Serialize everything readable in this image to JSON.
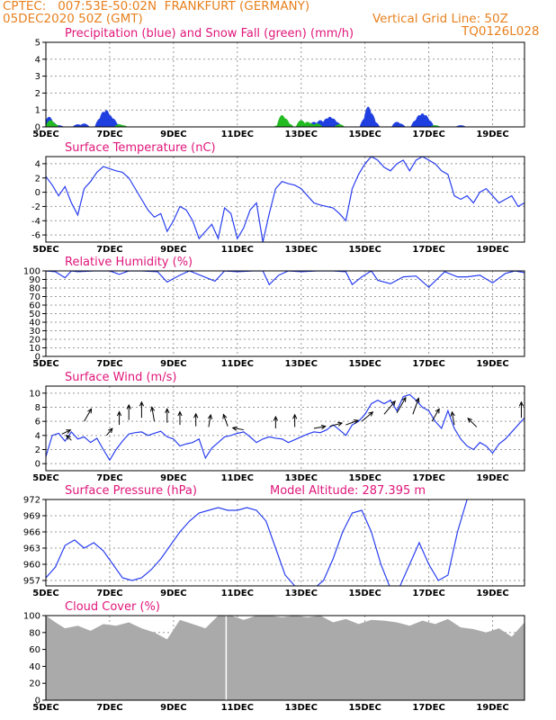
{
  "header": {
    "line1": "CPTEC:   007:53E-50:02N  FRANKFURT (GERMANY)",
    "line2_left": "05DEC2020 50Z (GMT)",
    "line2_right": "Vertical Grid Line: 50Z",
    "line3_right": "TQ0126L028"
  },
  "colors": {
    "header": "#e8801e",
    "title": "#e0167a",
    "line": "#2a3ff0",
    "precip": "#1f3fe0",
    "snow": "#22bb22",
    "cloud": "#aaaaaa",
    "grid": "#999999"
  },
  "chart_data": [
    {
      "type": "bar",
      "title": "Precipitation (blue) and Snow Fall (green) (mm/h)",
      "ylim": [
        0,
        5
      ],
      "yticks": [
        0,
        1,
        2,
        3,
        4,
        5
      ],
      "xticks": [
        "5DEC",
        "7DEC",
        "9DEC",
        "11DEC",
        "13DEC",
        "15DEC",
        "17DEC",
        "19DEC"
      ],
      "series": [
        {
          "name": "Precipitation",
          "points": [
            [
              0.1,
              0.6
            ],
            [
              0.2,
              0.3
            ],
            [
              0.4,
              0.1
            ],
            [
              1.0,
              0.15
            ],
            [
              1.2,
              0.2
            ],
            [
              1.7,
              0.5
            ],
            [
              1.8,
              0.9
            ],
            [
              1.9,
              1.0
            ],
            [
              2.0,
              0.7
            ],
            [
              2.1,
              0.5
            ],
            [
              2.2,
              0.2
            ],
            [
              8.4,
              0.3
            ],
            [
              8.6,
              0.4
            ],
            [
              8.8,
              0.5
            ],
            [
              8.9,
              0.6
            ],
            [
              9.0,
              0.5
            ],
            [
              9.1,
              0.3
            ],
            [
              10.0,
              0.5
            ],
            [
              10.1,
              1.2
            ],
            [
              10.2,
              0.8
            ],
            [
              10.3,
              0.3
            ],
            [
              11.0,
              0.3
            ],
            [
              11.1,
              0.2
            ],
            [
              11.6,
              0.4
            ],
            [
              11.7,
              0.7
            ],
            [
              11.8,
              0.8
            ],
            [
              11.9,
              0.7
            ],
            [
              12.0,
              0.4
            ],
            [
              13.0,
              0.1
            ]
          ]
        },
        {
          "name": "Snow Fall",
          "points": [
            [
              0.15,
              0.4
            ],
            [
              0.25,
              0.2
            ],
            [
              2.3,
              0.15
            ],
            [
              2.4,
              0.1
            ],
            [
              7.3,
              0.1
            ],
            [
              7.4,
              0.7
            ],
            [
              7.5,
              0.5
            ],
            [
              7.6,
              0.2
            ],
            [
              8.0,
              0.4
            ],
            [
              8.2,
              0.3
            ],
            [
              8.3,
              0.2
            ],
            [
              8.5,
              0.2
            ],
            [
              9.2,
              0.15
            ],
            [
              12.2,
              0.1
            ]
          ]
        }
      ]
    },
    {
      "type": "line",
      "title": "Surface Temperature (nC)",
      "ylim": [
        -7,
        5
      ],
      "yticks": [
        -6,
        -4,
        -2,
        0,
        2,
        4
      ],
      "xticks": [
        "5DEC",
        "7DEC",
        "9DEC",
        "11DEC",
        "13DEC",
        "15DEC",
        "17DEC",
        "19DEC"
      ],
      "x": [
        0,
        0.2,
        0.4,
        0.6,
        0.8,
        1.0,
        1.2,
        1.4,
        1.6,
        1.8,
        2.0,
        2.2,
        2.4,
        2.6,
        2.8,
        3.0,
        3.2,
        3.4,
        3.6,
        3.8,
        4.0,
        4.2,
        4.4,
        4.6,
        4.8,
        5.0,
        5.2,
        5.4,
        5.6,
        5.8,
        6.0,
        6.2,
        6.4,
        6.6,
        6.8,
        7.0,
        7.2,
        7.4,
        7.6,
        7.8,
        8.0,
        8.2,
        8.4,
        8.6,
        8.8,
        9.0,
        9.2,
        9.4,
        9.6,
        9.8,
        10.0,
        10.2,
        10.4,
        10.6,
        10.8,
        11.0,
        11.2,
        11.4,
        11.6,
        11.8,
        12.0,
        12.2,
        12.4,
        12.6,
        12.8,
        13.0,
        13.2,
        13.4,
        13.6,
        13.8,
        14.0,
        14.2,
        14.4,
        14.6,
        14.8,
        15.0
      ],
      "y": [
        2.2,
        1.0,
        -0.5,
        0.8,
        -1.5,
        -3.2,
        0.5,
        1.5,
        2.8,
        3.6,
        3.3,
        3.0,
        2.8,
        2.0,
        0.5,
        -1.0,
        -2.5,
        -3.5,
        -3.0,
        -5.5,
        -4.0,
        -2.0,
        -2.5,
        -4.0,
        -6.5,
        -5.5,
        -4.5,
        -6.5,
        -2.2,
        -3.0,
        -6.5,
        -5.0,
        -2.5,
        -1.5,
        -7.0,
        -3.0,
        0.5,
        1.5,
        1.2,
        1.0,
        0.5,
        -0.5,
        -1.5,
        -1.8,
        -2.0,
        -2.2,
        -3.0,
        -4.0,
        0.5,
        2.5,
        4.0,
        5.0,
        4.5,
        3.5,
        3.0,
        4.0,
        4.5,
        3.0,
        4.5,
        5.0,
        4.5,
        4.0,
        3.0,
        2.5,
        -0.5,
        -1.0,
        -0.5,
        -1.5,
        0.0,
        0.5,
        -0.5,
        -1.5,
        -1.0,
        -0.5,
        -2.0,
        -1.5
      ],
      "xlim": [
        0,
        15
      ]
    },
    {
      "type": "line",
      "title": "Relative Humidity (%)",
      "ylim": [
        0,
        100
      ],
      "yticks": [
        0,
        10,
        20,
        30,
        40,
        50,
        60,
        70,
        80,
        90,
        100
      ],
      "xticks": [
        "5DEC",
        "7DEC",
        "9DEC",
        "11DEC",
        "13DEC",
        "15DEC",
        "17DEC",
        "19DEC"
      ],
      "x": [
        0,
        0.3,
        0.6,
        0.8,
        1.0,
        1.5,
        2.0,
        2.3,
        2.6,
        3.0,
        3.5,
        3.8,
        4.2,
        4.5,
        4.9,
        5.3,
        5.6,
        6.0,
        6.5,
        6.8,
        7.0,
        7.3,
        7.6,
        8.0,
        8.5,
        9.0,
        9.4,
        9.6,
        9.9,
        10.2,
        10.4,
        10.8,
        11.2,
        11.6,
        12.0,
        12.5,
        12.9,
        13.2,
        13.6,
        14.0,
        14.4,
        14.7,
        15.0
      ],
      "y": [
        100,
        99,
        92,
        100,
        99,
        100,
        100,
        96,
        100,
        100,
        99,
        87,
        95,
        100,
        94,
        88,
        100,
        99,
        100,
        100,
        84,
        95,
        100,
        99,
        100,
        100,
        99,
        84,
        93,
        100,
        89,
        85,
        93,
        94,
        81,
        99,
        93,
        93,
        95,
        86,
        97,
        100,
        98
      ],
      "xlim": [
        0,
        15
      ]
    },
    {
      "type": "line",
      "title": "Surface Wind (m/s)",
      "ylim": [
        -1,
        11
      ],
      "yticks": [
        0,
        2,
        4,
        6,
        8,
        10
      ],
      "xticks": [
        "5DEC",
        "7DEC",
        "9DEC",
        "11DEC",
        "13DEC",
        "15DEC",
        "17DEC",
        "19DEC"
      ],
      "x": [
        0,
        0.2,
        0.4,
        0.6,
        0.8,
        1.0,
        1.2,
        1.4,
        1.6,
        1.8,
        2.0,
        2.2,
        2.4,
        2.6,
        2.8,
        3.0,
        3.2,
        3.4,
        3.6,
        3.8,
        4.0,
        4.2,
        4.4,
        4.6,
        4.8,
        5.0,
        5.2,
        5.4,
        5.6,
        5.8,
        6.0,
        6.2,
        6.4,
        6.6,
        6.8,
        7.0,
        7.2,
        7.4,
        7.6,
        7.8,
        8.0,
        8.2,
        8.4,
        8.6,
        8.8,
        9.0,
        9.2,
        9.4,
        9.6,
        9.8,
        10.0,
        10.2,
        10.4,
        10.6,
        10.8,
        11.0,
        11.2,
        11.4,
        11.6,
        11.8,
        12.0,
        12.2,
        12.4,
        12.6,
        12.8,
        13.0,
        13.2,
        13.4,
        13.6,
        13.8,
        14.0,
        14.2,
        14.4,
        14.6,
        14.8,
        15.0
      ],
      "y": [
        1.0,
        4.0,
        4.3,
        3.2,
        4.5,
        3.5,
        3.8,
        3.0,
        3.6,
        2.0,
        0.5,
        2.0,
        3.2,
        4.2,
        4.4,
        4.5,
        4.0,
        4.3,
        4.6,
        3.8,
        3.5,
        2.5,
        2.8,
        3.0,
        3.5,
        0.8,
        2.2,
        3.0,
        3.8,
        4.0,
        4.3,
        4.5,
        3.8,
        3.0,
        3.5,
        3.8,
        3.6,
        3.5,
        3.0,
        3.4,
        3.8,
        4.2,
        4.5,
        4.4,
        4.8,
        5.5,
        4.8,
        4.0,
        5.5,
        6.0,
        7.0,
        8.5,
        9.0,
        8.5,
        9.0,
        7.5,
        9.5,
        9.8,
        9.0,
        8.0,
        7.5,
        6.0,
        5.0,
        7.5,
        5.0,
        3.5,
        2.5,
        2.0,
        3.0,
        2.5,
        1.5,
        2.8,
        3.5,
        4.5,
        5.5,
        6.5
      ],
      "xlim": [
        0,
        15
      ]
    },
    {
      "type": "line",
      "title": "Surface Pressure (hPa)",
      "annotation": "Model Altitude: 287.395 m",
      "ylim": [
        956,
        972
      ],
      "yticks": [
        957,
        960,
        963,
        966,
        969,
        972
      ],
      "xticks": [
        "5DEC",
        "7DEC",
        "9DEC",
        "11DEC",
        "13DEC",
        "15DEC",
        "17DEC",
        "19DEC"
      ],
      "x": [
        0,
        0.3,
        0.6,
        0.9,
        1.2,
        1.5,
        1.8,
        2.1,
        2.4,
        2.7,
        3.0,
        3.3,
        3.6,
        3.9,
        4.2,
        4.5,
        4.8,
        5.1,
        5.4,
        5.7,
        6.0,
        6.3,
        6.6,
        6.9,
        7.2,
        7.5,
        7.8,
        8.1,
        8.4,
        8.7,
        9.0,
        9.3,
        9.6,
        9.9,
        10.2,
        10.5,
        10.8,
        11.1,
        11.4,
        11.7,
        12.0,
        12.3,
        12.6,
        12.9,
        13.2
      ],
      "y": [
        957.5,
        959.5,
        963.5,
        964.5,
        963.0,
        964.0,
        962.5,
        960.0,
        957.5,
        957.0,
        957.5,
        959.0,
        961.0,
        963.5,
        966.0,
        968.0,
        969.5,
        970.0,
        970.5,
        970.0,
        970.0,
        970.5,
        970.0,
        968.0,
        963.0,
        958.0,
        956.0,
        955.5,
        955.5,
        957.0,
        961.0,
        966.0,
        969.5,
        970.0,
        966.0,
        960.0,
        955.5,
        956.0,
        960.0,
        964.0,
        960.0,
        957.0,
        958.0,
        966.0,
        972.0
      ],
      "xlim": [
        0,
        15
      ]
    },
    {
      "type": "area",
      "title": "Cloud Cover (%)",
      "ylim": [
        0,
        100
      ],
      "yticks": [
        0,
        20,
        40,
        60,
        80,
        100
      ],
      "xticks": [
        "5DEC",
        "7DEC",
        "9DEC",
        "11DEC",
        "13DEC",
        "15DEC",
        "17DEC",
        "19DEC"
      ],
      "x": [
        0,
        0.3,
        0.6,
        1.0,
        1.4,
        1.8,
        2.2,
        2.6,
        3.0,
        3.4,
        3.8,
        4.2,
        4.6,
        5.0,
        5.4,
        5.8,
        6.2,
        6.6,
        7.0,
        7.4,
        7.8,
        8.2,
        8.6,
        9.0,
        9.4,
        9.8,
        10.2,
        10.6,
        11.0,
        11.4,
        11.8,
        12.2,
        12.6,
        13.0,
        13.4,
        13.8,
        14.2,
        14.6,
        15.0
      ],
      "y": [
        100,
        92,
        85,
        88,
        82,
        90,
        88,
        92,
        85,
        80,
        72,
        95,
        90,
        85,
        100,
        100,
        95,
        100,
        100,
        98,
        100,
        98,
        100,
        92,
        96,
        90,
        95,
        94,
        92,
        88,
        94,
        90,
        96,
        86,
        84,
        80,
        85,
        75,
        92
      ],
      "xlim": [
        0,
        15
      ]
    }
  ]
}
